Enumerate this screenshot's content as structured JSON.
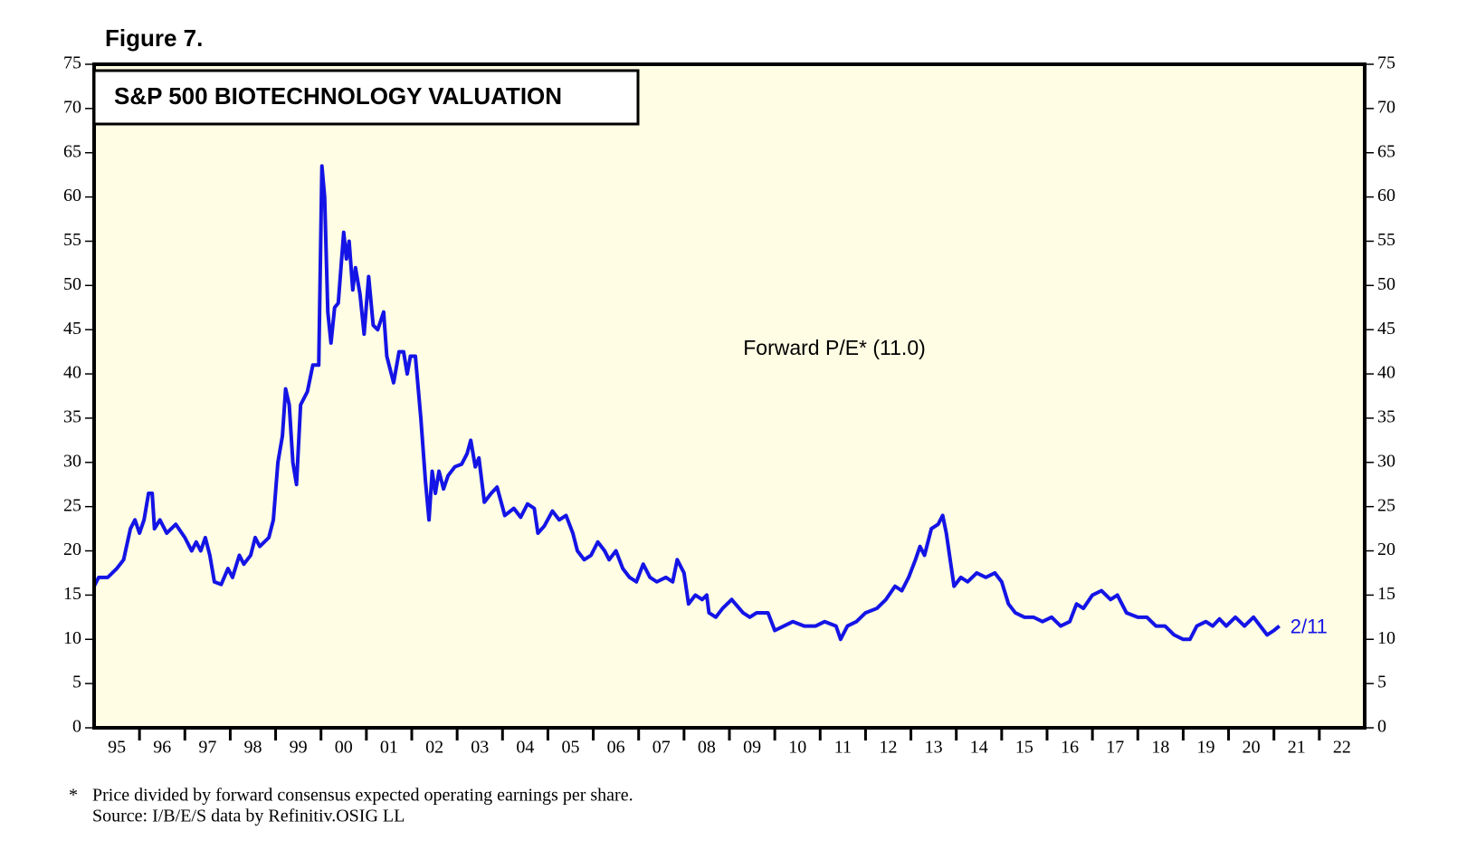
{
  "chart_data": {
    "type": "line",
    "figure_label": "Figure 7.",
    "title": "S&P 500 BIOTECHNOLOGY VALUATION",
    "annotation": "Forward P/E* (11.0)",
    "end_label": "2/11",
    "footnote_marker": "*",
    "footnote": "Price divided by forward consensus expected operating earnings per share.",
    "source": "Source: I/B/E/S data by Refinitiv.OSIG LL",
    "color": "#1414e6",
    "background": "#fffde3",
    "xlim": [
      1995,
      2023
    ],
    "ylim": [
      0,
      75
    ],
    "yticks": [
      0,
      5,
      10,
      15,
      20,
      25,
      30,
      35,
      40,
      45,
      50,
      55,
      60,
      65,
      70,
      75
    ],
    "xticks": [
      {
        "value": 1995,
        "label": "95"
      },
      {
        "value": 1996,
        "label": "96"
      },
      {
        "value": 1997,
        "label": "97"
      },
      {
        "value": 1998,
        "label": "98"
      },
      {
        "value": 1999,
        "label": "99"
      },
      {
        "value": 2000,
        "label": "00"
      },
      {
        "value": 2001,
        "label": "01"
      },
      {
        "value": 2002,
        "label": "02"
      },
      {
        "value": 2003,
        "label": "03"
      },
      {
        "value": 2004,
        "label": "04"
      },
      {
        "value": 2005,
        "label": "05"
      },
      {
        "value": 2006,
        "label": "06"
      },
      {
        "value": 2007,
        "label": "07"
      },
      {
        "value": 2008,
        "label": "08"
      },
      {
        "value": 2009,
        "label": "09"
      },
      {
        "value": 2010,
        "label": "10"
      },
      {
        "value": 2011,
        "label": "11"
      },
      {
        "value": 2012,
        "label": "12"
      },
      {
        "value": 2013,
        "label": "13"
      },
      {
        "value": 2014,
        "label": "14"
      },
      {
        "value": 2015,
        "label": "15"
      },
      {
        "value": 2016,
        "label": "16"
      },
      {
        "value": 2017,
        "label": "17"
      },
      {
        "value": 2018,
        "label": "18"
      },
      {
        "value": 2019,
        "label": "19"
      },
      {
        "value": 2020,
        "label": "20"
      },
      {
        "value": 2021,
        "label": "21"
      },
      {
        "value": 2022,
        "label": "22"
      }
    ],
    "x": [
      1995.0,
      1995.1,
      1995.3,
      1995.5,
      1995.65,
      1995.8,
      1995.9,
      1996.0,
      1996.1,
      1996.2,
      1996.28,
      1996.33,
      1996.45,
      1996.6,
      1996.8,
      1997.0,
      1997.15,
      1997.25,
      1997.35,
      1997.45,
      1997.55,
      1997.65,
      1997.8,
      1997.95,
      1998.05,
      1998.2,
      1998.3,
      1998.45,
      1998.55,
      1998.65,
      1998.85,
      1998.95,
      1999.05,
      1999.15,
      1999.22,
      1999.3,
      1999.38,
      1999.46,
      1999.55,
      1999.7,
      1999.82,
      1999.95,
      2000.02,
      2000.08,
      2000.15,
      2000.22,
      2000.3,
      2000.38,
      2000.5,
      2000.56,
      2000.62,
      2000.7,
      2000.76,
      2000.86,
      2000.95,
      2001.05,
      2001.15,
      2001.25,
      2001.38,
      2001.45,
      2001.6,
      2001.72,
      2001.82,
      2001.9,
      2001.97,
      2002.08,
      2002.2,
      2002.3,
      2002.38,
      2002.45,
      2002.52,
      2002.6,
      2002.7,
      2002.8,
      2002.95,
      2003.1,
      2003.22,
      2003.3,
      2003.4,
      2003.48,
      2003.6,
      2003.75,
      2003.88,
      2004.05,
      2004.25,
      2004.4,
      2004.55,
      2004.7,
      2004.78,
      2004.92,
      2005.1,
      2005.25,
      2005.4,
      2005.55,
      2005.65,
      2005.8,
      2005.95,
      2006.1,
      2006.25,
      2006.35,
      2006.5,
      2006.65,
      2006.8,
      2006.95,
      2007.1,
      2007.25,
      2007.4,
      2007.6,
      2007.75,
      2007.85,
      2008.0,
      2008.1,
      2008.25,
      2008.4,
      2008.5,
      2008.55,
      2008.7,
      2008.85,
      2009.05,
      2009.3,
      2009.45,
      2009.6,
      2009.85,
      2010.0,
      2010.2,
      2010.4,
      2010.65,
      2010.9,
      2011.1,
      2011.35,
      2011.45,
      2011.6,
      2011.8,
      2012.0,
      2012.25,
      2012.45,
      2012.65,
      2012.8,
      2012.95,
      2013.1,
      2013.2,
      2013.3,
      2013.45,
      2013.6,
      2013.7,
      2013.78,
      2013.95,
      2014.1,
      2014.25,
      2014.45,
      2014.65,
      2014.85,
      2015.0,
      2015.15,
      2015.3,
      2015.5,
      2015.7,
      2015.9,
      2016.1,
      2016.3,
      2016.5,
      2016.65,
      2016.8,
      2017.0,
      2017.2,
      2017.4,
      2017.55,
      2017.75,
      2018.0,
      2018.2,
      2018.4,
      2018.6,
      2018.8,
      2019.0,
      2019.15,
      2019.3,
      2019.5,
      2019.65,
      2019.8,
      2019.95,
      2020.15,
      2020.35,
      2020.55,
      2020.7,
      2020.85,
      2021.0,
      2021.12
    ],
    "values": [
      16,
      17,
      17,
      18,
      19,
      22.5,
      23.5,
      22,
      23.5,
      26.5,
      26.5,
      22.5,
      23.5,
      22,
      23,
      21.5,
      20,
      21,
      20,
      21.5,
      19.5,
      16.5,
      16.2,
      18,
      17,
      19.5,
      18.5,
      19.5,
      21.5,
      20.5,
      21.5,
      23.5,
      30,
      33,
      38.3,
      36.5,
      30,
      27.5,
      36.5,
      38,
      41,
      41,
      63.5,
      60,
      47,
      43.5,
      47.5,
      48,
      56,
      53,
      55,
      49.5,
      52,
      49,
      44.5,
      51,
      45.5,
      45,
      47,
      42,
      39,
      42.5,
      42.5,
      40,
      42,
      42,
      35,
      28,
      23.5,
      29,
      26.5,
      29,
      27,
      28.5,
      29.5,
      29.8,
      31,
      32.5,
      29.5,
      30.5,
      25.5,
      26.5,
      27.2,
      24,
      24.8,
      23.8,
      25.3,
      24.8,
      22,
      22.8,
      24.5,
      23.5,
      24,
      22,
      20,
      19,
      19.5,
      21,
      20,
      19,
      20,
      18,
      17,
      16.5,
      18.5,
      17,
      16.5,
      17,
      16.5,
      19,
      17.5,
      14,
      15,
      14.5,
      15,
      13,
      12.5,
      13.5,
      14.5,
      13,
      12.5,
      13,
      13,
      11,
      11.5,
      12,
      11.5,
      11.5,
      12,
      11.5,
      10,
      11.5,
      12,
      13,
      13.5,
      14.5,
      16,
      15.5,
      17,
      19,
      20.5,
      19.5,
      22.5,
      23,
      24,
      22,
      16,
      17,
      16.5,
      17.5,
      17,
      17.5,
      16.5,
      14,
      13,
      12.5,
      12.5,
      12,
      12.5,
      11.5,
      12,
      14,
      13.5,
      15,
      15.5,
      14.5,
      15,
      13,
      12.5,
      12.5,
      11.5,
      11.5,
      10.5,
      10,
      10,
      11.5,
      12,
      11.5,
      12.3,
      11.5,
      12.5,
      11.5,
      12.5,
      11.5,
      10.5,
      11,
      11.5
    ]
  }
}
